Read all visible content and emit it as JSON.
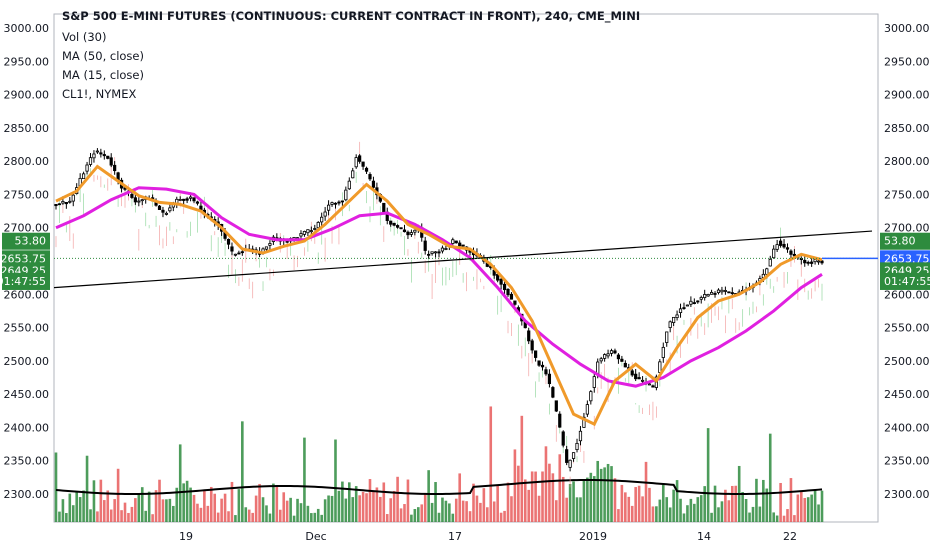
{
  "header": {
    "title": "S&P 500 E-MINI FUTURES (CONTINUOUS: CURRENT CONTRACT IN FRONT), 240, CME_MINI",
    "indicators": [
      "Vol (30)",
      "MA (50, close)",
      "MA (15, close)",
      "CL1!, NYMEX"
    ]
  },
  "colors": {
    "up": "#2e8b3e",
    "down": "#e85a5a",
    "ma15": "#f09a2a",
    "ma50": "#e020e0",
    "vol_ma": "#000000",
    "tag_green": "#2e8b3e",
    "tag_blue": "#2962ff",
    "trend": "#000000"
  },
  "chart_data": {
    "type": "candlestick",
    "y_ticks": [
      "3000.00",
      "2950.00",
      "2900.00",
      "2850.00",
      "2800.00",
      "2750.00",
      "2700.00",
      "2650.00",
      "2600.00",
      "2550.00",
      "2500.00",
      "2450.00",
      "2400.00",
      "2350.00",
      "2300.00"
    ],
    "ylim": [
      2260,
      3010
    ],
    "x_ticks": [
      "19",
      "Dec",
      "17",
      "2019",
      "14",
      "22"
    ],
    "price_tags_left": [
      "53.80",
      "2653.75",
      "2649.25",
      "01:47:55"
    ],
    "price_tags_right": [
      "53.80",
      "2653.75",
      "2649.25",
      "01:47:55"
    ],
    "es_close_path": [
      [
        0,
        2735
      ],
      [
        5,
        2740
      ],
      [
        9,
        2785
      ],
      [
        12,
        2815
      ],
      [
        16,
        2805
      ],
      [
        20,
        2760
      ],
      [
        24,
        2740
      ],
      [
        28,
        2745
      ],
      [
        32,
        2720
      ],
      [
        36,
        2742
      ],
      [
        40,
        2745
      ],
      [
        44,
        2720
      ],
      [
        48,
        2705
      ],
      [
        52,
        2660
      ],
      [
        56,
        2668
      ],
      [
        60,
        2662
      ],
      [
        64,
        2685
      ],
      [
        68,
        2680
      ],
      [
        72,
        2690
      ],
      [
        76,
        2700
      ],
      [
        80,
        2735
      ],
      [
        84,
        2742
      ],
      [
        88,
        2808
      ],
      [
        91,
        2780
      ],
      [
        94,
        2750
      ],
      [
        97,
        2710
      ],
      [
        100,
        2700
      ],
      [
        103,
        2690
      ],
      [
        106,
        2700
      ],
      [
        108,
        2660
      ],
      [
        112,
        2665
      ],
      [
        116,
        2680
      ],
      [
        120,
        2668
      ],
      [
        124,
        2655
      ],
      [
        128,
        2630
      ],
      [
        132,
        2600
      ],
      [
        136,
        2560
      ],
      [
        140,
        2500
      ],
      [
        143,
        2480
      ],
      [
        146,
        2420
      ],
      [
        149,
        2340
      ],
      [
        152,
        2380
      ],
      [
        155,
        2440
      ],
      [
        158,
        2500
      ],
      [
        162,
        2515
      ],
      [
        166,
        2490
      ],
      [
        170,
        2470
      ],
      [
        174,
        2460
      ],
      [
        178,
        2550
      ],
      [
        182,
        2580
      ],
      [
        186,
        2590
      ],
      [
        190,
        2600
      ],
      [
        194,
        2605
      ],
      [
        198,
        2600
      ],
      [
        202,
        2610
      ],
      [
        206,
        2630
      ],
      [
        210,
        2680
      ],
      [
        214,
        2660
      ],
      [
        218,
        2648
      ],
      [
        222,
        2650
      ]
    ],
    "ma15_path": [
      [
        0,
        2740
      ],
      [
        6,
        2755
      ],
      [
        12,
        2792
      ],
      [
        18,
        2770
      ],
      [
        24,
        2748
      ],
      [
        30,
        2738
      ],
      [
        36,
        2735
      ],
      [
        42,
        2725
      ],
      [
        48,
        2700
      ],
      [
        54,
        2668
      ],
      [
        60,
        2662
      ],
      [
        66,
        2672
      ],
      [
        72,
        2680
      ],
      [
        78,
        2705
      ],
      [
        84,
        2735
      ],
      [
        90,
        2765
      ],
      [
        96,
        2740
      ],
      [
        102,
        2705
      ],
      [
        108,
        2690
      ],
      [
        114,
        2672
      ],
      [
        120,
        2668
      ],
      [
        126,
        2645
      ],
      [
        132,
        2610
      ],
      [
        138,
        2560
      ],
      [
        144,
        2490
      ],
      [
        150,
        2420
      ],
      [
        156,
        2405
      ],
      [
        162,
        2470
      ],
      [
        168,
        2495
      ],
      [
        174,
        2470
      ],
      [
        180,
        2520
      ],
      [
        186,
        2565
      ],
      [
        192,
        2590
      ],
      [
        198,
        2600
      ],
      [
        204,
        2618
      ],
      [
        210,
        2645
      ],
      [
        216,
        2660
      ],
      [
        222,
        2652
      ]
    ],
    "ma50_path": [
      [
        0,
        2700
      ],
      [
        8,
        2718
      ],
      [
        16,
        2742
      ],
      [
        24,
        2760
      ],
      [
        32,
        2758
      ],
      [
        40,
        2750
      ],
      [
        48,
        2715
      ],
      [
        56,
        2690
      ],
      [
        64,
        2682
      ],
      [
        72,
        2682
      ],
      [
        80,
        2698
      ],
      [
        88,
        2718
      ],
      [
        96,
        2722
      ],
      [
        104,
        2705
      ],
      [
        112,
        2682
      ],
      [
        120,
        2655
      ],
      [
        128,
        2610
      ],
      [
        136,
        2560
      ],
      [
        144,
        2525
      ],
      [
        152,
        2495
      ],
      [
        160,
        2470
      ],
      [
        168,
        2462
      ],
      [
        176,
        2475
      ],
      [
        184,
        2500
      ],
      [
        192,
        2520
      ],
      [
        200,
        2545
      ],
      [
        208,
        2575
      ],
      [
        216,
        2610
      ],
      [
        222,
        2630
      ]
    ],
    "trendline": [
      [
        2615,
        0
      ],
      [
        2695,
        1
      ]
    ],
    "crude_label": "CL1!, NYMEX"
  }
}
